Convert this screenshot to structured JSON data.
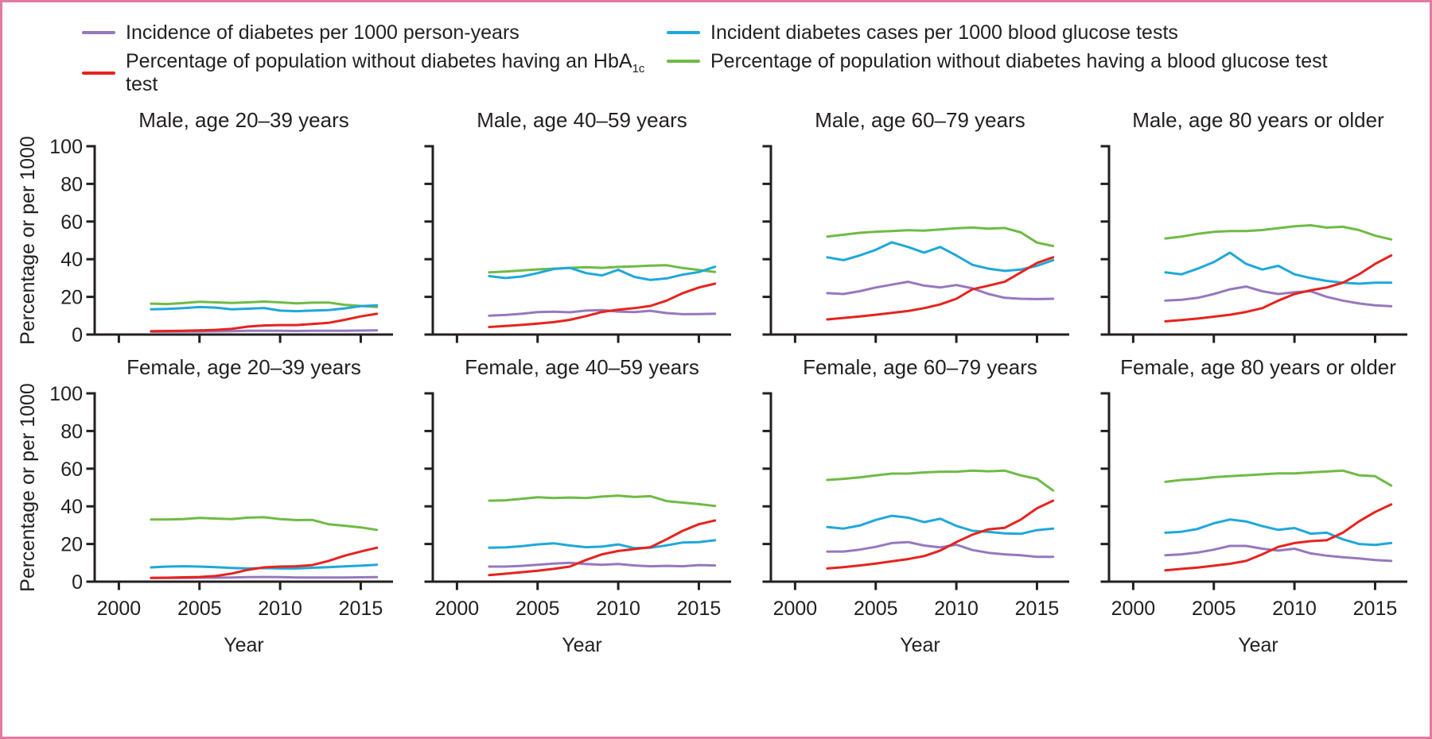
{
  "figure": {
    "border_color": "#e27ba0",
    "background": "#ffffff"
  },
  "legend": {
    "items": [
      {
        "name": "incidence",
        "color": "#9678be",
        "label": "Incidence of diabetes per 1000 person-years"
      },
      {
        "name": "hba1c-test",
        "color": "#e6231e",
        "label_pre": "Percentage of population without diabetes having an HbA",
        "label_sub": "1c",
        "label_post": " test"
      },
      {
        "name": "incident-cases",
        "color": "#1fa8d9",
        "label": "Incident diabetes cases per 1000 blood glucose tests"
      },
      {
        "name": "glucose-test",
        "color": "#6fbb44",
        "label": "Percentage of population without diabetes having a blood glucose test"
      }
    ]
  },
  "axes": {
    "ylabel": "Percentage or per 1000",
    "xlabel": "Year",
    "yticks": [
      0,
      20,
      40,
      60,
      80,
      100
    ],
    "xticks": [
      2000,
      2005,
      2010,
      2015
    ],
    "xlim": [
      1998.5,
      2017.0
    ],
    "ylim": [
      0,
      100
    ],
    "grid": false
  },
  "chart_data": [
    {
      "type": "line",
      "title": "Male, age 20–39 years",
      "x": [
        2002,
        2003,
        2004,
        2005,
        2006,
        2007,
        2008,
        2009,
        2010,
        2011,
        2012,
        2013,
        2014,
        2015,
        2016
      ],
      "series": [
        {
          "name": "Incidence of diabetes per 1000 person-years",
          "color": "#9678be",
          "values": [
            1.5,
            1.5,
            1.6,
            1.6,
            1.7,
            1.8,
            2.0,
            2.0,
            2.0,
            1.9,
            2.0,
            2.0,
            2.0,
            2.1,
            2.2
          ]
        },
        {
          "name": "Percentage of population without diabetes having an HbA1c test",
          "color": "#e6231e",
          "values": [
            1.8,
            1.9,
            2.0,
            2.2,
            2.5,
            3.0,
            4.2,
            4.8,
            5.0,
            5.0,
            5.6,
            6.2,
            7.8,
            9.6,
            11.0
          ]
        },
        {
          "name": "Incident diabetes cases per 1000 blood glucose tests",
          "color": "#1fa8d9",
          "values": [
            13.4,
            13.6,
            14.0,
            14.6,
            14.3,
            13.4,
            13.7,
            14.1,
            12.7,
            12.4,
            12.7,
            13.0,
            13.9,
            15.1,
            15.5
          ]
        },
        {
          "name": "Percentage of population without diabetes having a blood glucose test",
          "color": "#6fbb44",
          "values": [
            16.4,
            16.2,
            16.7,
            17.4,
            17.1,
            16.8,
            17.1,
            17.5,
            17.1,
            16.6,
            16.9,
            17.0,
            15.8,
            15.2,
            14.6
          ]
        }
      ]
    },
    {
      "type": "line",
      "title": "Male, age 40–59 years",
      "x": [
        2002,
        2003,
        2004,
        2005,
        2006,
        2007,
        2008,
        2009,
        2010,
        2011,
        2012,
        2013,
        2014,
        2015,
        2016
      ],
      "series": [
        {
          "name": "Incidence of diabetes per 1000 person-years",
          "color": "#9678be",
          "values": [
            10.0,
            10.4,
            11.0,
            11.9,
            12.1,
            11.8,
            12.7,
            13.0,
            12.2,
            11.9,
            12.6,
            11.4,
            10.8,
            10.9,
            11.0
          ]
        },
        {
          "name": "Percentage of population without diabetes having an HbA1c test",
          "color": "#e6231e",
          "values": [
            4.0,
            4.5,
            5.1,
            5.8,
            6.6,
            7.8,
            9.8,
            12.0,
            13.2,
            14.0,
            15.2,
            18.0,
            22.0,
            25.0,
            27.0
          ]
        },
        {
          "name": "Incident diabetes cases per 1000 blood glucose tests",
          "color": "#1fa8d9",
          "values": [
            31.0,
            30.0,
            30.8,
            32.6,
            34.8,
            35.4,
            32.6,
            31.4,
            34.4,
            30.6,
            29.0,
            29.8,
            31.8,
            33.2,
            36.0
          ]
        },
        {
          "name": "Percentage of population without diabetes having a blood glucose test",
          "color": "#6fbb44",
          "values": [
            33.0,
            33.4,
            34.0,
            34.6,
            35.0,
            35.4,
            35.8,
            35.4,
            35.9,
            36.2,
            36.6,
            36.8,
            35.3,
            34.3,
            33.2
          ]
        }
      ]
    },
    {
      "type": "line",
      "title": "Male, age 60–79 years",
      "x": [
        2002,
        2003,
        2004,
        2005,
        2006,
        2007,
        2008,
        2009,
        2010,
        2011,
        2012,
        2013,
        2014,
        2015,
        2016
      ],
      "series": [
        {
          "name": "Incidence of diabetes per 1000 person-years",
          "color": "#9678be",
          "values": [
            22.0,
            21.5,
            23.0,
            25.0,
            26.5,
            28.0,
            26.0,
            25.0,
            26.3,
            24.5,
            21.5,
            19.5,
            19.0,
            18.8,
            19.0
          ]
        },
        {
          "name": "Percentage of population without diabetes having an HbA1c test",
          "color": "#e6231e",
          "values": [
            8.0,
            8.8,
            9.6,
            10.5,
            11.5,
            12.5,
            14.0,
            16.0,
            19.0,
            24.0,
            26.0,
            28.0,
            33.0,
            38.0,
            41.0
          ]
        },
        {
          "name": "Incident diabetes cases per 1000 blood glucose tests",
          "color": "#1fa8d9",
          "values": [
            41.0,
            39.5,
            42.0,
            45.0,
            49.0,
            46.5,
            43.5,
            46.5,
            42.0,
            37.0,
            35.0,
            33.8,
            34.5,
            36.5,
            39.5
          ]
        },
        {
          "name": "Percentage of population without diabetes having a blood glucose test",
          "color": "#6fbb44",
          "values": [
            52.0,
            53.0,
            54.0,
            54.6,
            55.0,
            55.4,
            55.2,
            55.8,
            56.4,
            56.8,
            56.2,
            56.6,
            54.2,
            48.8,
            47.0
          ]
        }
      ]
    },
    {
      "type": "line",
      "title": "Male, age 80 years or older",
      "x": [
        2002,
        2003,
        2004,
        2005,
        2006,
        2007,
        2008,
        2009,
        2010,
        2011,
        2012,
        2013,
        2014,
        2015,
        2016
      ],
      "series": [
        {
          "name": "Incidence of diabetes per 1000 person-years",
          "color": "#9678be",
          "values": [
            18.0,
            18.5,
            19.5,
            21.5,
            24.0,
            25.5,
            23.0,
            21.5,
            22.5,
            23.0,
            20.0,
            18.0,
            16.5,
            15.5,
            15.0
          ]
        },
        {
          "name": "Percentage of population without diabetes having an HbA1c test",
          "color": "#e6231e",
          "values": [
            7.0,
            7.7,
            8.5,
            9.5,
            10.5,
            12.0,
            14.0,
            18.0,
            21.5,
            23.5,
            25.0,
            27.5,
            32.0,
            37.5,
            42.0
          ]
        },
        {
          "name": "Incident diabetes cases per 1000 blood glucose tests",
          "color": "#1fa8d9",
          "values": [
            33.0,
            32.0,
            35.0,
            38.5,
            43.5,
            37.5,
            34.5,
            36.5,
            32.0,
            30.0,
            28.5,
            27.5,
            27.0,
            27.5,
            27.5
          ]
        },
        {
          "name": "Percentage of population without diabetes having a blood glucose test",
          "color": "#6fbb44",
          "values": [
            51.0,
            52.0,
            53.5,
            54.5,
            55.0,
            55.0,
            55.5,
            56.5,
            57.5,
            58.0,
            56.8,
            57.2,
            55.5,
            52.5,
            50.5
          ]
        }
      ]
    },
    {
      "type": "line",
      "title": "Female, age 20–39 years",
      "x": [
        2002,
        2003,
        2004,
        2005,
        2006,
        2007,
        2008,
        2009,
        2010,
        2011,
        2012,
        2013,
        2014,
        2015,
        2016
      ],
      "series": [
        {
          "name": "Incidence of diabetes per 1000 person-years",
          "color": "#9678be",
          "values": [
            2.0,
            2.0,
            2.0,
            2.1,
            2.1,
            2.2,
            2.4,
            2.5,
            2.4,
            2.2,
            2.2,
            2.2,
            2.2,
            2.3,
            2.4
          ]
        },
        {
          "name": "Percentage of population without diabetes having an HbA1c test",
          "color": "#e6231e",
          "values": [
            2.0,
            2.1,
            2.3,
            2.5,
            3.0,
            4.3,
            6.3,
            7.6,
            8.0,
            8.2,
            8.8,
            11.0,
            13.8,
            16.0,
            18.0
          ]
        },
        {
          "name": "Incident diabetes cases per 1000 blood glucose tests",
          "color": "#1fa8d9",
          "values": [
            7.6,
            8.0,
            8.2,
            8.0,
            7.7,
            7.3,
            7.0,
            7.2,
            7.0,
            7.0,
            7.4,
            7.7,
            8.1,
            8.5,
            9.0
          ]
        },
        {
          "name": "Percentage of population without diabetes having a blood glucose test",
          "color": "#6fbb44",
          "values": [
            33.0,
            33.0,
            33.2,
            33.9,
            33.5,
            33.2,
            34.0,
            34.2,
            33.2,
            32.7,
            32.8,
            30.5,
            29.7,
            28.8,
            27.5
          ]
        }
      ]
    },
    {
      "type": "line",
      "title": "Female, age 40–59 years",
      "x": [
        2002,
        2003,
        2004,
        2005,
        2006,
        2007,
        2008,
        2009,
        2010,
        2011,
        2012,
        2013,
        2014,
        2015,
        2016
      ],
      "series": [
        {
          "name": "Incidence of diabetes per 1000 person-years",
          "color": "#9678be",
          "values": [
            8.0,
            8.0,
            8.4,
            9.0,
            9.6,
            10.0,
            9.4,
            9.0,
            9.4,
            8.6,
            8.2,
            8.4,
            8.2,
            8.8,
            8.6
          ]
        },
        {
          "name": "Percentage of population without diabetes having an HbA1c test",
          "color": "#e6231e",
          "values": [
            3.5,
            4.2,
            5.0,
            5.8,
            6.8,
            8.0,
            11.5,
            14.5,
            16.3,
            17.3,
            18.3,
            22.5,
            27.0,
            30.5,
            32.5
          ]
        },
        {
          "name": "Incident diabetes cases per 1000 blood glucose tests",
          "color": "#1fa8d9",
          "values": [
            18.0,
            18.2,
            18.8,
            19.8,
            20.4,
            19.2,
            18.3,
            18.6,
            19.8,
            17.8,
            18.0,
            19.3,
            20.8,
            21.0,
            22.0
          ]
        },
        {
          "name": "Percentage of population without diabetes having a blood glucose test",
          "color": "#6fbb44",
          "values": [
            43.0,
            43.2,
            44.0,
            44.8,
            44.4,
            44.7,
            44.4,
            45.2,
            45.7,
            45.0,
            45.4,
            42.8,
            42.0,
            41.2,
            40.2
          ]
        }
      ]
    },
    {
      "type": "line",
      "title": "Female, age 60–79 years",
      "x": [
        2002,
        2003,
        2004,
        2005,
        2006,
        2007,
        2008,
        2009,
        2010,
        2011,
        2012,
        2013,
        2014,
        2015,
        2016
      ],
      "series": [
        {
          "name": "Incidence of diabetes per 1000 person-years",
          "color": "#9678be",
          "values": [
            16.0,
            16.0,
            17.0,
            18.5,
            20.5,
            21.0,
            19.2,
            18.2,
            19.6,
            16.8,
            15.3,
            14.5,
            14.0,
            13.2,
            13.2
          ]
        },
        {
          "name": "Percentage of population without diabetes having an HbA1c test",
          "color": "#e6231e",
          "values": [
            7.0,
            7.7,
            8.6,
            9.6,
            10.8,
            12.0,
            13.6,
            16.5,
            21.0,
            25.0,
            27.8,
            28.6,
            33.0,
            39.0,
            43.0
          ]
        },
        {
          "name": "Incident diabetes cases per 1000 blood glucose tests",
          "color": "#1fa8d9",
          "values": [
            29.0,
            28.2,
            29.8,
            32.8,
            35.0,
            34.0,
            31.6,
            33.4,
            29.6,
            27.0,
            26.4,
            25.6,
            25.4,
            27.4,
            28.2
          ]
        },
        {
          "name": "Percentage of population without diabetes having a blood glucose test",
          "color": "#6fbb44",
          "values": [
            54.0,
            54.6,
            55.4,
            56.4,
            57.4,
            57.4,
            58.0,
            58.4,
            58.4,
            59.0,
            58.6,
            59.0,
            56.4,
            54.6,
            48.4
          ]
        }
      ]
    },
    {
      "type": "line",
      "title": "Female, age 80 years or older",
      "x": [
        2002,
        2003,
        2004,
        2005,
        2006,
        2007,
        2008,
        2009,
        2010,
        2011,
        2012,
        2013,
        2014,
        2015,
        2016
      ],
      "series": [
        {
          "name": "Incidence of diabetes per 1000 person-years",
          "color": "#9678be",
          "values": [
            14.0,
            14.5,
            15.5,
            17.0,
            19.0,
            19.0,
            17.5,
            16.5,
            17.5,
            15.0,
            13.8,
            13.0,
            12.3,
            11.5,
            11.0
          ]
        },
        {
          "name": "Percentage of population without diabetes having an HbA1c test",
          "color": "#e6231e",
          "values": [
            6.0,
            6.8,
            7.5,
            8.5,
            9.5,
            11.0,
            14.5,
            18.5,
            20.5,
            21.5,
            22.0,
            26.0,
            32.0,
            37.0,
            41.0
          ]
        },
        {
          "name": "Incident diabetes cases per 1000 blood glucose tests",
          "color": "#1fa8d9",
          "values": [
            26.0,
            26.5,
            28.0,
            31.0,
            33.0,
            32.0,
            29.5,
            27.5,
            28.5,
            25.5,
            26.0,
            22.5,
            20.0,
            19.5,
            20.5
          ]
        },
        {
          "name": "Percentage of population without diabetes having a blood glucose test",
          "color": "#6fbb44",
          "values": [
            53.0,
            54.0,
            54.5,
            55.5,
            56.0,
            56.5,
            57.0,
            57.5,
            57.5,
            58.0,
            58.5,
            59.0,
            56.5,
            56.0,
            51.0
          ]
        }
      ]
    }
  ]
}
